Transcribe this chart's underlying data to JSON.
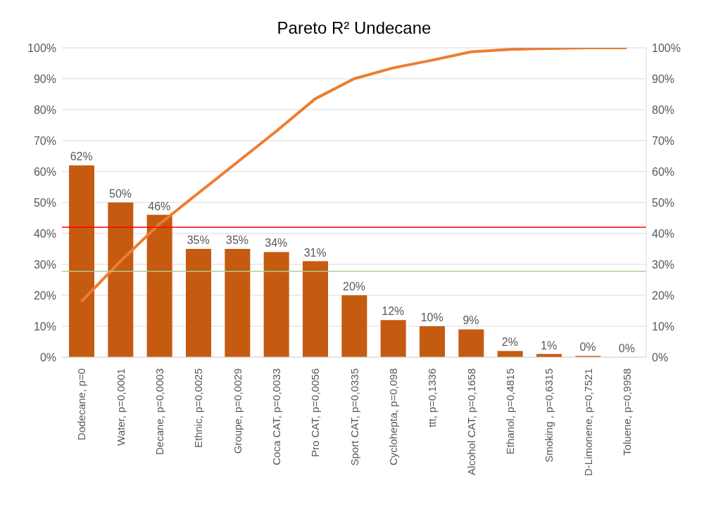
{
  "chart_data": {
    "type": "bar",
    "title": "Pareto R² Undecane",
    "categories": [
      "Dodecane, p=0",
      "Water, p=0,0001",
      "Decane, p=0,0003",
      "Ethnic, p=0,0025",
      "Groupe, p=0,0029",
      "Coca CAT, p=0,0033",
      "Pro  CAT, p=0,0056",
      "Sport CAT, p=0,0335",
      "Cyclohepta, p=0,098",
      "ttt, p=0,1336",
      "Alcohol CAT, p=0,1658",
      "Ethanol, p=0,4815",
      "Smoking , p=0,6315",
      "D-Limonene, p=0,7521",
      "Toluene, p=0,9958"
    ],
    "series": [
      {
        "color": "#c55a11",
        "values": [
          62,
          50,
          46,
          35,
          35,
          34,
          31,
          20,
          12,
          10,
          9,
          2,
          1,
          0.4,
          0
        ],
        "value_labels": [
          "62%",
          "50%",
          "46%",
          "35%",
          "35%",
          "34%",
          "31%",
          "20%",
          "12%",
          "10%",
          "9%",
          "2%",
          "1%",
          "0%",
          "0%"
        ]
      },
      {
        "type": "line",
        "axis": "y2",
        "color": "#ed7d31",
        "values": [
          18,
          31,
          43,
          53,
          63,
          73,
          83.5,
          90,
          93.5,
          96,
          98.7,
          99.5,
          99.8,
          100,
          100
        ]
      }
    ],
    "ylim": [
      0,
      100
    ],
    "yticks": [
      {
        "value": 0,
        "label": "0%"
      },
      {
        "value": 10,
        "label": "10%"
      },
      {
        "value": 20,
        "label": "20%"
      },
      {
        "value": 30,
        "label": "30%"
      },
      {
        "value": 40,
        "label": "40%"
      },
      {
        "value": 50,
        "label": "50%"
      },
      {
        "value": 60,
        "label": "60%"
      },
      {
        "value": 70,
        "label": "70%"
      },
      {
        "value": 80,
        "label": "80%"
      },
      {
        "value": 90,
        "label": "90%"
      },
      {
        "value": 100,
        "label": "100%"
      }
    ],
    "y2lim": [
      0,
      100
    ],
    "y2ticks": [
      {
        "value": 0,
        "label": "0%"
      },
      {
        "value": 10,
        "label": "10%"
      },
      {
        "value": 20,
        "label": "20%"
      },
      {
        "value": 30,
        "label": "30%"
      },
      {
        "value": 40,
        "label": "40%"
      },
      {
        "value": 50,
        "label": "50%"
      },
      {
        "value": 60,
        "label": "60%"
      },
      {
        "value": 70,
        "label": "70%"
      },
      {
        "value": 80,
        "label": "80%"
      },
      {
        "value": 90,
        "label": "90%"
      },
      {
        "value": 100,
        "label": "100%"
      }
    ],
    "ref_lines": [
      {
        "axis": "y",
        "value": 42,
        "color": "#ff0000"
      },
      {
        "axis": "y",
        "value": 27.7,
        "color": "#a9d18e"
      }
    ],
    "grid": "y",
    "legend": false
  }
}
